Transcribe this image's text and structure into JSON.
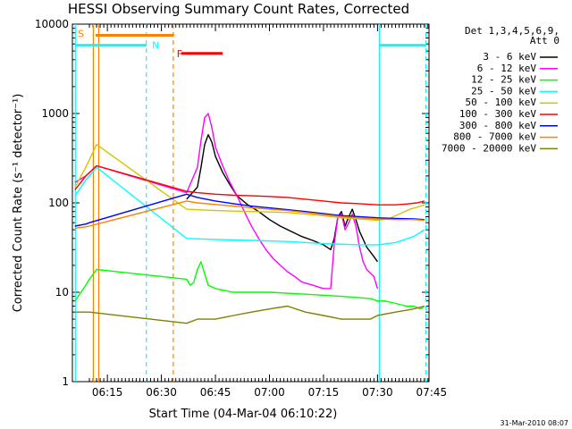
{
  "chart_data": {
    "type": "line",
    "title": "HESSI Observing Summary Count Rates, Corrected",
    "xlabel": "Start Time (04-Mar-04 06:10:22)",
    "ylabel": "Corrected Count Rate (s⁻¹ detector⁻¹)",
    "y_scale": "log",
    "ylim": [
      1,
      10000
    ],
    "xlim_minutes": [
      0,
      96
    ],
    "x_ticks": [
      {
        "m": 5,
        "label": "06:15"
      },
      {
        "m": 20,
        "label": "06:30"
      },
      {
        "m": 35,
        "label": "06:45"
      },
      {
        "m": 50,
        "label": "07:00"
      },
      {
        "m": 65,
        "label": "07:15"
      },
      {
        "m": 80,
        "label": "07:30"
      },
      {
        "m": 95,
        "label": "07:45"
      }
    ],
    "y_ticks": [
      {
        "v": 1,
        "label": "1"
      },
      {
        "v": 10,
        "label": "10"
      },
      {
        "v": 100,
        "label": "100"
      },
      {
        "v": 1000,
        "label": "1000"
      },
      {
        "v": 10000,
        "label": "10000"
      }
    ],
    "legend": {
      "header": [
        "Det 1,3,4,5,6,9,",
        "Att 0"
      ],
      "placement": "right"
    },
    "series": [
      {
        "name": "3 - 6 keV",
        "color": "#000000",
        "points": [
          [
            27,
            110
          ],
          [
            30,
            150
          ],
          [
            31,
            250
          ],
          [
            32,
            450
          ],
          [
            33,
            580
          ],
          [
            34,
            480
          ],
          [
            35,
            330
          ],
          [
            37,
            220
          ],
          [
            39,
            160
          ],
          [
            41,
            120
          ],
          [
            44,
            95
          ],
          [
            47,
            80
          ],
          [
            50,
            65
          ],
          [
            53,
            55
          ],
          [
            56,
            48
          ],
          [
            59,
            42
          ],
          [
            62,
            38
          ],
          [
            65,
            34
          ],
          [
            67,
            30
          ],
          [
            68,
            40
          ],
          [
            69,
            70
          ],
          [
            70,
            80
          ],
          [
            71,
            55
          ],
          [
            72,
            70
          ],
          [
            73,
            85
          ],
          [
            74,
            65
          ],
          [
            75,
            48
          ],
          [
            77,
            32
          ],
          [
            79,
            25
          ],
          [
            80,
            22
          ]
        ]
      },
      {
        "name": "6 - 12 keV",
        "color": "#ff00ff",
        "points": [
          [
            -4,
            170
          ],
          [
            -1,
            200
          ],
          [
            2,
            260
          ],
          [
            27,
            130
          ],
          [
            30,
            250
          ],
          [
            31,
            500
          ],
          [
            32,
            900
          ],
          [
            33,
            1000
          ],
          [
            34,
            700
          ],
          [
            35,
            420
          ],
          [
            37,
            260
          ],
          [
            39,
            170
          ],
          [
            41,
            120
          ],
          [
            43,
            80
          ],
          [
            45,
            55
          ],
          [
            47,
            40
          ],
          [
            49,
            30
          ],
          [
            51,
            24
          ],
          [
            53,
            20
          ],
          [
            55,
            17
          ],
          [
            57,
            15
          ],
          [
            59,
            13
          ],
          [
            62,
            12
          ],
          [
            65,
            11
          ],
          [
            67,
            11
          ],
          [
            68,
            35
          ],
          [
            69,
            70
          ],
          [
            70,
            75
          ],
          [
            71,
            50
          ],
          [
            72,
            60
          ],
          [
            73,
            75
          ],
          [
            74,
            55
          ],
          [
            75,
            32
          ],
          [
            76,
            22
          ],
          [
            77,
            18
          ],
          [
            79,
            15
          ],
          [
            80,
            11
          ]
        ]
      },
      {
        "name": "12 - 25 keV",
        "color": "#00ff00",
        "points": [
          [
            -4,
            8
          ],
          [
            -1,
            12
          ],
          [
            0,
            14
          ],
          [
            2,
            18
          ],
          [
            27,
            14
          ],
          [
            28,
            12
          ],
          [
            29,
            13
          ],
          [
            30,
            18
          ],
          [
            31,
            22
          ],
          [
            32,
            16
          ],
          [
            33,
            12
          ],
          [
            35,
            11
          ],
          [
            40,
            10
          ],
          [
            50,
            10
          ],
          [
            60,
            9.5
          ],
          [
            70,
            9
          ],
          [
            78,
            8.5
          ],
          [
            80,
            8
          ],
          [
            82,
            8
          ],
          [
            85,
            7.5
          ],
          [
            88,
            7
          ],
          [
            90,
            7
          ],
          [
            92,
            6.5
          ],
          [
            93,
            7
          ]
        ]
      },
      {
        "name": "25 - 50 keV",
        "color": "#00ffff",
        "points": [
          [
            -4,
            120
          ],
          [
            -1,
            180
          ],
          [
            2,
            250
          ],
          [
            27,
            40
          ],
          [
            35,
            39
          ],
          [
            45,
            38
          ],
          [
            55,
            37
          ],
          [
            65,
            35
          ],
          [
            75,
            34
          ],
          [
            80,
            34
          ],
          [
            85,
            36
          ],
          [
            90,
            42
          ],
          [
            93,
            50
          ]
        ]
      },
      {
        "name": "50 - 100 keV",
        "color": "#d4c500",
        "points": [
          [
            -4,
            150
          ],
          [
            -1,
            250
          ],
          [
            2,
            450
          ],
          [
            27,
            85
          ],
          [
            35,
            82
          ],
          [
            45,
            80
          ],
          [
            55,
            78
          ],
          [
            65,
            72
          ],
          [
            70,
            68
          ],
          [
            75,
            66
          ],
          [
            80,
            64
          ],
          [
            83,
            66
          ],
          [
            86,
            75
          ],
          [
            89,
            85
          ],
          [
            92,
            92
          ],
          [
            93,
            95
          ]
        ]
      },
      {
        "name": "100 - 300 keV",
        "color": "#ff0000",
        "points": [
          [
            -4,
            140
          ],
          [
            -1,
            200
          ],
          [
            2,
            260
          ],
          [
            27,
            135
          ],
          [
            30,
            130
          ],
          [
            35,
            125
          ],
          [
            40,
            122
          ],
          [
            45,
            120
          ],
          [
            50,
            118
          ],
          [
            55,
            115
          ],
          [
            60,
            110
          ],
          [
            65,
            105
          ],
          [
            70,
            100
          ],
          [
            75,
            98
          ],
          [
            80,
            95
          ],
          [
            85,
            95
          ],
          [
            88,
            97
          ],
          [
            91,
            100
          ],
          [
            93,
            105
          ]
        ]
      },
      {
        "name": "300 - 800 keV",
        "color": "#0000ff",
        "points": [
          [
            -4,
            55
          ],
          [
            -1,
            58
          ],
          [
            0,
            60
          ],
          [
            27,
            125
          ],
          [
            30,
            115
          ],
          [
            35,
            105
          ],
          [
            40,
            98
          ],
          [
            45,
            92
          ],
          [
            50,
            88
          ],
          [
            55,
            84
          ],
          [
            60,
            80
          ],
          [
            65,
            76
          ],
          [
            70,
            72
          ],
          [
            75,
            70
          ],
          [
            80,
            68
          ],
          [
            85,
            67
          ],
          [
            90,
            66
          ],
          [
            93,
            65
          ]
        ]
      },
      {
        "name": "800 - 7000 keV",
        "color": "#ff8000",
        "points": [
          [
            -4,
            52
          ],
          [
            -1,
            54
          ],
          [
            0,
            55
          ],
          [
            27,
            105
          ],
          [
            30,
            100
          ],
          [
            35,
            96
          ],
          [
            40,
            92
          ],
          [
            45,
            88
          ],
          [
            50,
            85
          ],
          [
            55,
            82
          ],
          [
            60,
            78
          ],
          [
            65,
            74
          ],
          [
            70,
            70
          ],
          [
            75,
            68
          ],
          [
            80,
            66
          ],
          [
            85,
            65
          ],
          [
            90,
            65
          ],
          [
            93,
            64
          ]
        ]
      },
      {
        "name": "7000 - 20000 keV",
        "color": "#808000",
        "points": [
          [
            -4,
            6
          ],
          [
            0,
            6
          ],
          [
            27,
            4.5
          ],
          [
            30,
            5
          ],
          [
            35,
            5
          ],
          [
            40,
            5.5
          ],
          [
            45,
            6
          ],
          [
            50,
            6.5
          ],
          [
            55,
            7
          ],
          [
            60,
            6
          ],
          [
            65,
            5.5
          ],
          [
            70,
            5
          ],
          [
            75,
            5
          ],
          [
            78,
            5
          ],
          [
            80,
            5.5
          ],
          [
            85,
            6
          ],
          [
            90,
            6.5
          ],
          [
            93,
            7
          ]
        ]
      }
    ],
    "overlays": [
      {
        "label": "S",
        "color": "#ff8000",
        "y": 7500,
        "x0": 1.7,
        "x1": 23.5
      },
      {
        "label": "N",
        "color": "#00ffff",
        "y": 5800,
        "x0": -4,
        "x1": 15.9,
        "x2": 80.5,
        "x3": 93.5
      },
      {
        "label": "F",
        "color": "#ff0000",
        "y": 4700,
        "x0": 25.5,
        "x1": 37
      }
    ],
    "vertical_markers": [
      {
        "x": 1.1,
        "color": "#ff8000",
        "style": "solid"
      },
      {
        "x": 2.6,
        "color": "#ff8000",
        "style": "solid"
      },
      {
        "x": 23.3,
        "color": "#ff8000",
        "style": "dashed"
      },
      {
        "x": 15.8,
        "color": "#00ffff",
        "style": "dashed"
      },
      {
        "x": 80.5,
        "color": "#00ffff",
        "style": "solid"
      },
      {
        "x": 93.4,
        "color": "#00ffff",
        "style": "dashed"
      },
      {
        "x": -3.9,
        "color": "#00ffff",
        "style": "solid"
      }
    ]
  },
  "footer": {
    "stamp": "31-Mar-2010 08:07"
  }
}
